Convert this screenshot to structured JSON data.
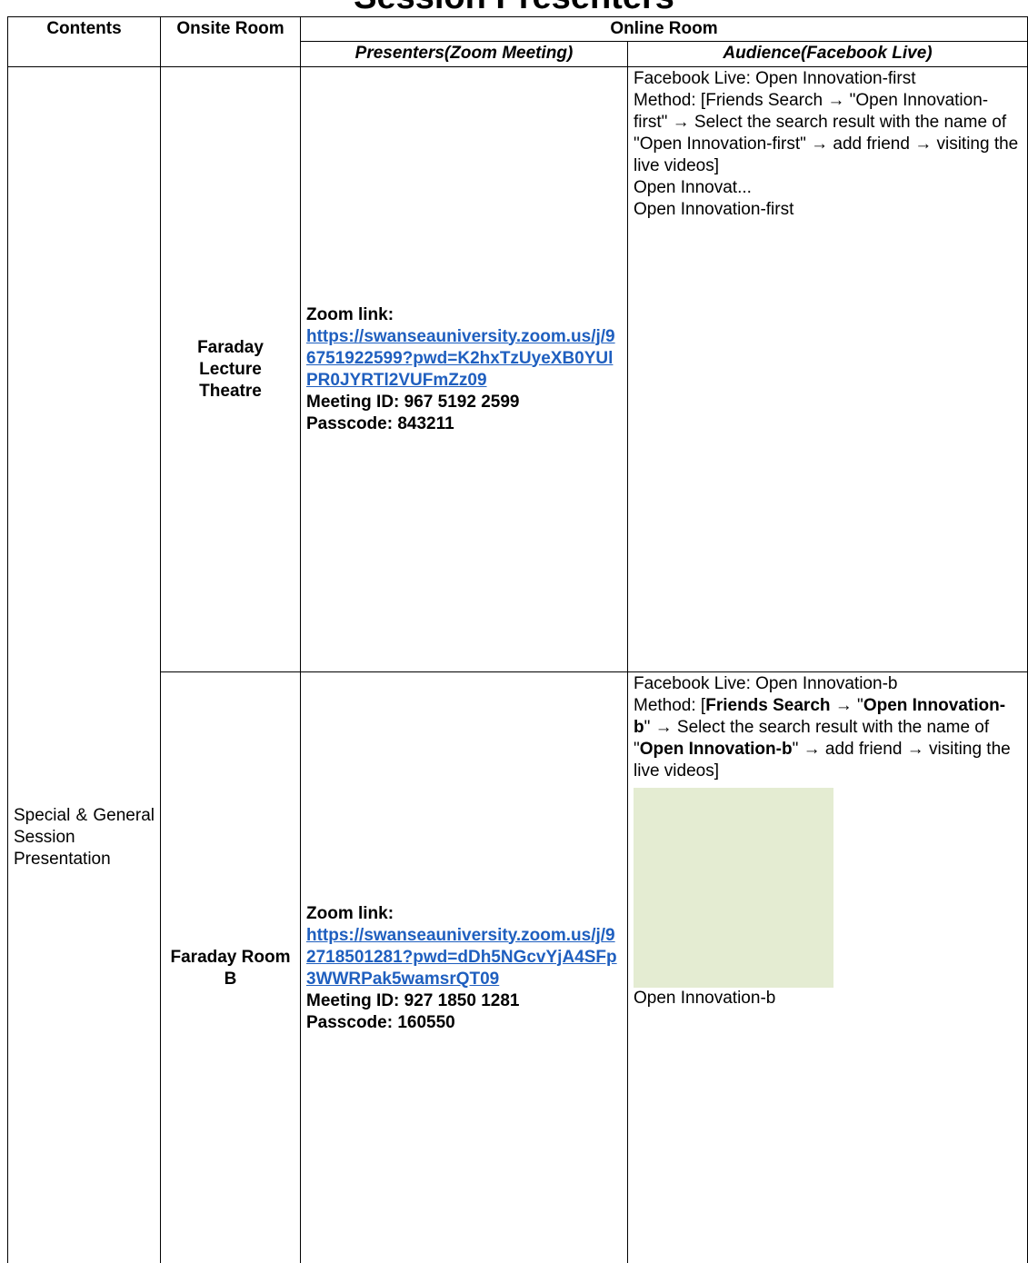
{
  "title": "Session Presenters",
  "table": {
    "header": {
      "contents": "Contents",
      "onsite_room": "Onsite Room",
      "online_room": "Online Room",
      "presenters": "Presenters(Zoom Meeting)",
      "audience": "Audience(Facebook Live)"
    },
    "contents": "Special & General Session Presentation",
    "rows": [
      {
        "onsite_room": "Faraday Lecture Theatre",
        "zoom_label": "Zoom link:",
        "zoom_url": "https://swanseauniversity.zoom.us/j/96751922599?pwd=K2hxTzUyeXB0YUlPR0JYRTl2VUFmZz09",
        "meeting_id": "Meeting ID: 967 5192 2599",
        "passcode": "Passcode: 843211",
        "facebook_live": "Facebook Live: Open Innovation-first",
        "method": [
          {
            "text": "Method: [Friends Search → \"Open Innovation-first\" → Select the search result with the name of \"Open Innovation-first\" → add friend → visiting the live videos]",
            "bold": false
          }
        ],
        "image_title": "Open Innovat...",
        "image_caption": "Open Innovation-first"
      },
      {
        "onsite_room": "Faraday Room B",
        "zoom_label": "Zoom link:",
        "zoom_url": "https://swanseauniversity.zoom.us/j/92718501281?pwd=dDh5NGcvYjA4SFp3WWRPak5wamsrQT09",
        "meeting_id": "Meeting ID: 927 1850 1281",
        "passcode": "Passcode: 160550",
        "facebook_live": "Facebook Live: Open Innovation-b",
        "method": [
          {
            "text": "Method: [",
            "bold": false
          },
          {
            "text": "Friends Search",
            "bold": true
          },
          {
            "text": " → \"",
            "bold": false
          },
          {
            "text": "Open Innovation-b",
            "bold": true
          },
          {
            "text": "\" → Select the search result with the name of \"",
            "bold": false
          },
          {
            "text": "Open Innovation-b",
            "bold": true
          },
          {
            "text": "\" → add friend → visiting the live videos]",
            "bold": false
          }
        ],
        "image_title": null,
        "image_caption": "Open Innovation-b"
      }
    ]
  }
}
